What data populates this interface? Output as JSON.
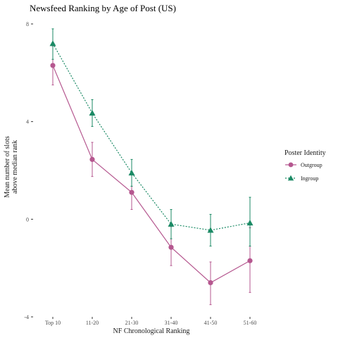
{
  "chart_data": {
    "type": "line",
    "title": "Newsfeed Ranking by Age of Post (US)",
    "xlabel": "NF Chronological Ranking",
    "ylabel_lines": [
      "Mean number of slots",
      "above median rank"
    ],
    "categories": [
      "Top 10",
      "11-20",
      "21-30",
      "31-40",
      "41-50",
      "51-60"
    ],
    "ylim": [
      -4,
      8
    ],
    "yticks": [
      -4,
      0,
      4,
      8
    ],
    "ytick_labels": [
      "-4",
      "0",
      "4",
      "8"
    ],
    "grid": false,
    "legend": {
      "title": "Poster Identity",
      "placement": "right"
    },
    "series": [
      {
        "name": "Outgroup",
        "color": "#b5578f",
        "marker": "circle",
        "line_style": "solid",
        "values": [
          6.3,
          2.45,
          1.1,
          -1.15,
          -2.6,
          -1.7
        ],
        "lower": [
          5.5,
          1.75,
          0.4,
          -1.9,
          -3.5,
          -3.0
        ],
        "upper": [
          7.1,
          3.15,
          1.85,
          -0.3,
          -1.75,
          -0.35
        ]
      },
      {
        "name": "Ingroup",
        "color": "#1b8a65",
        "marker": "triangle",
        "line_style": "dotted",
        "values": [
          7.2,
          4.35,
          1.9,
          -0.2,
          -0.45,
          -0.15
        ],
        "lower": [
          6.55,
          3.8,
          1.35,
          -0.8,
          -1.1,
          -1.1
        ],
        "upper": [
          7.8,
          4.9,
          2.45,
          0.4,
          0.2,
          0.9
        ]
      }
    ]
  }
}
